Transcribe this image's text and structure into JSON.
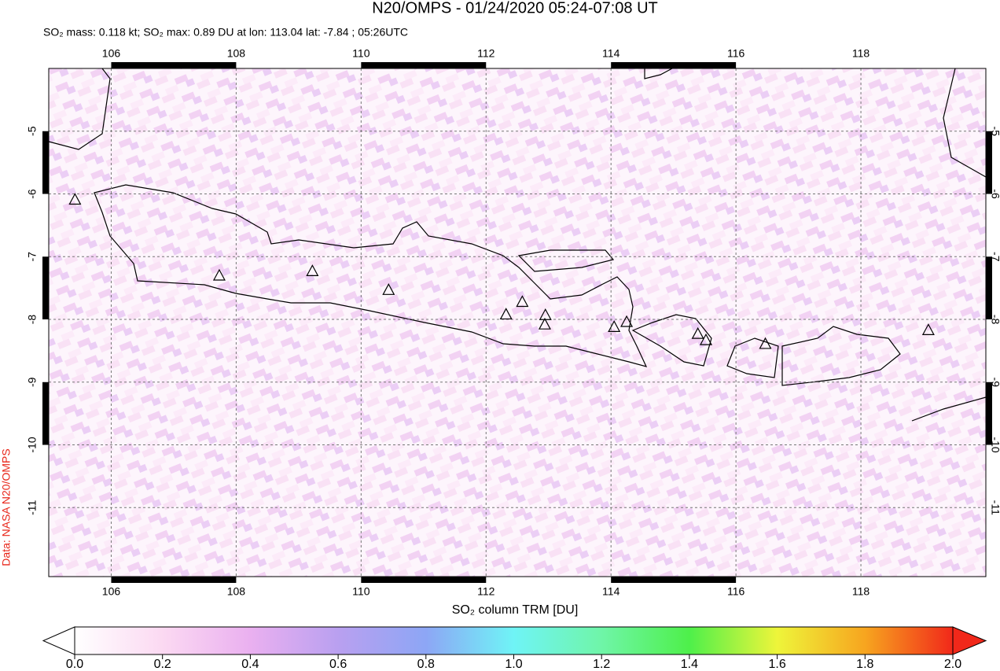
{
  "chart_data": {
    "type": "map",
    "title": "N20/OMPS - 01/24/2020 05:24-07:08 UT",
    "subtitle": "SO₂ mass: 0.118 kt; SO₂ max: 0.89 DU at lon: 113.04 lat: -7.84 ; 05:26UTC",
    "source": "Data: NASA N20/OMPS",
    "xlim": [
      105,
      120
    ],
    "xticks": [
      106,
      108,
      110,
      112,
      114,
      116,
      118
    ],
    "ylim": [
      -12.1,
      -4
    ],
    "yticks": [
      -5,
      -6,
      -7,
      -8,
      -9,
      -10,
      -11
    ],
    "grid": true,
    "volcanoes": {
      "x": [
        105.42,
        107.73,
        109.22,
        110.44,
        112.32,
        112.58,
        112.95,
        112.94,
        114.05,
        114.25,
        115.39,
        115.52,
        116.47,
        119.08
      ],
      "y": [
        -6.1,
        -7.31,
        -7.24,
        -7.54,
        -7.93,
        -7.73,
        -7.94,
        -8.09,
        -8.13,
        -8.05,
        -8.24,
        -8.34,
        -8.4,
        -8.18
      ]
    },
    "colorbar": {
      "label": "SO₂ column TRM [DU]",
      "lim": [
        0,
        2
      ],
      "ticks": [
        {
          "value": 0,
          "label": "0.0"
        },
        {
          "value": 0.2,
          "label": "0.2"
        },
        {
          "value": 0.4,
          "label": "0.4"
        },
        {
          "value": 0.6,
          "label": "0.6"
        },
        {
          "value": 0.8,
          "label": "0.8"
        },
        {
          "value": 1,
          "label": "1.0"
        },
        {
          "value": 1.2,
          "label": "1.2"
        },
        {
          "value": 1.4,
          "label": "1.4"
        },
        {
          "value": 1.6,
          "label": "1.6"
        },
        {
          "value": 1.8,
          "label": "1.8"
        },
        {
          "value": 2,
          "label": "2.0"
        }
      ]
    }
  }
}
